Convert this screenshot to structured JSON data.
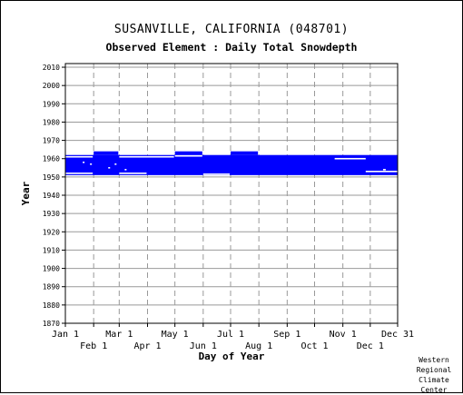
{
  "header": {
    "title": "SUSANVILLE, CALIFORNIA   (048701)",
    "subtitle": "Observed Element : Daily Total Snowdepth"
  },
  "credit": [
    "Western",
    "Regional",
    "Climate",
    "Center"
  ],
  "chart_data": {
    "type": "bar",
    "title": "SUSANVILLE, CALIFORNIA   (048701)",
    "subtitle": "Observed Element : Daily Total Snowdepth",
    "xlabel": "Day of Year",
    "ylabel": "Year",
    "xlim": [
      1,
      365
    ],
    "ylim": [
      1870,
      2012
    ],
    "x_ticks_top": [
      {
        "day": 1,
        "label": "Jan 1"
      },
      {
        "day": 60,
        "label": "Mar 1"
      },
      {
        "day": 121,
        "label": "May 1"
      },
      {
        "day": 182,
        "label": "Jul 1"
      },
      {
        "day": 244,
        "label": "Sep 1"
      },
      {
        "day": 305,
        "label": "Nov 1"
      },
      {
        "day": 365,
        "label": "Dec 31"
      }
    ],
    "x_ticks_bottom": [
      {
        "day": 32,
        "label": "Feb 1"
      },
      {
        "day": 91,
        "label": "Apr 1"
      },
      {
        "day": 152,
        "label": "Jun 1"
      },
      {
        "day": 213,
        "label": "Aug 1"
      },
      {
        "day": 274,
        "label": "Oct 1"
      },
      {
        "day": 335,
        "label": "Dec 1"
      }
    ],
    "y_ticks": [
      1870,
      1880,
      1890,
      1900,
      1910,
      1920,
      1930,
      1940,
      1950,
      1960,
      1970,
      1980,
      1990,
      2000,
      2010
    ],
    "series_color": "#0000ff",
    "data_periods": [
      {
        "start_day": 1,
        "end_day": 365,
        "start_year": 1951,
        "end_year": 1962
      },
      {
        "start_day": 32,
        "end_day": 59,
        "start_year": 1962,
        "end_year": 1964
      },
      {
        "start_day": 121,
        "end_day": 151,
        "start_year": 1962,
        "end_year": 1964
      },
      {
        "start_day": 182,
        "end_day": 212,
        "start_year": 1962,
        "end_year": 1964
      }
    ],
    "missing_gaps": [
      {
        "start_day": 1,
        "end_day": 31,
        "year": 1961
      },
      {
        "start_day": 1,
        "end_day": 31,
        "year": 1952
      },
      {
        "start_day": 60,
        "end_day": 120,
        "year": 1961
      },
      {
        "start_day": 60,
        "end_day": 90,
        "year": 1952
      },
      {
        "start_day": 121,
        "end_day": 151,
        "year": 1961.5
      },
      {
        "start_day": 152,
        "end_day": 181,
        "year": 1951.5
      },
      {
        "start_day": 296,
        "end_day": 330,
        "year": 1960
      },
      {
        "start_day": 330,
        "end_day": 365,
        "year": 1953
      },
      {
        "start_day": 20,
        "end_day": 22,
        "year": 1958
      },
      {
        "start_day": 28,
        "end_day": 30,
        "year": 1957
      },
      {
        "start_day": 48,
        "end_day": 50,
        "year": 1955
      },
      {
        "start_day": 55,
        "end_day": 57,
        "year": 1957
      },
      {
        "start_day": 66,
        "end_day": 68,
        "year": 1954
      },
      {
        "start_day": 349,
        "end_day": 352,
        "year": 1954
      }
    ]
  }
}
